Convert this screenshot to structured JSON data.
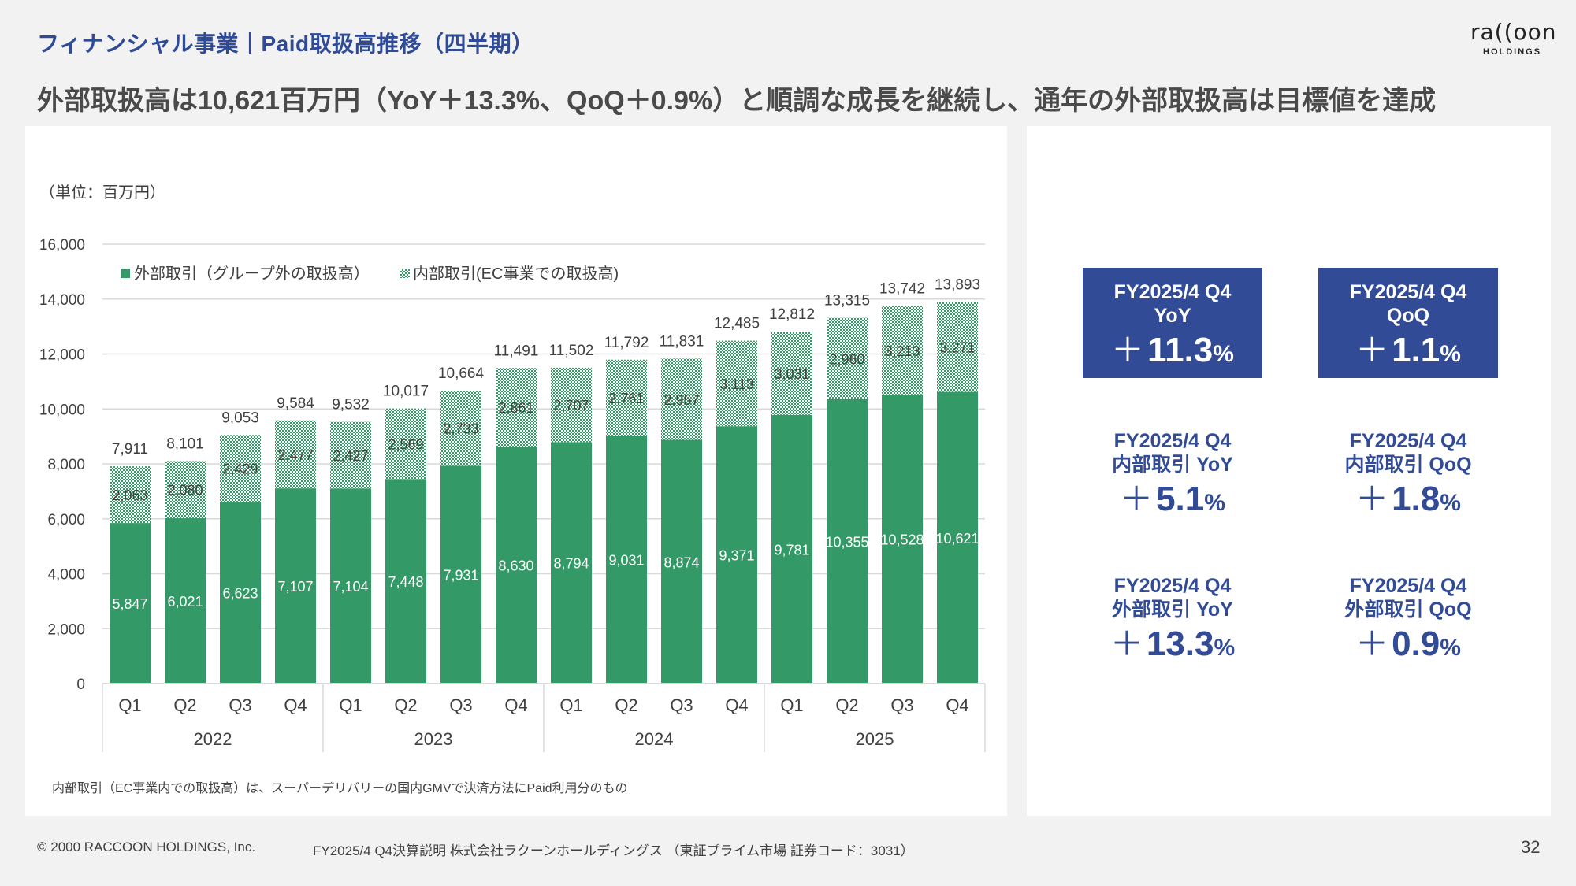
{
  "header": {
    "section_title": "フィナンシャル事業｜Paid取扱高推移（四半期）",
    "headline": "外部取扱高は10,621百万円（YoY＋13.3%、QoQ＋0.9%）と順調な成長を継続し、通年の外部取扱高は目標値を達成",
    "logo_word": "ra((oon",
    "logo_sub": "HOLDINGS"
  },
  "chart_data": {
    "type": "bar",
    "stacked": true,
    "unit_label": "（単位：百万円）",
    "ylim": [
      0,
      16000
    ],
    "yticks": [
      0,
      2000,
      4000,
      6000,
      8000,
      10000,
      12000,
      14000,
      16000
    ],
    "ytick_labels": [
      "0",
      "2,000",
      "4,000",
      "6,000",
      "8,000",
      "10,000",
      "12,000",
      "14,000",
      "16,000"
    ],
    "grid": true,
    "legend_position": "top-left",
    "categories": [
      "Q1",
      "Q2",
      "Q3",
      "Q4",
      "Q1",
      "Q2",
      "Q3",
      "Q4",
      "Q1",
      "Q2",
      "Q3",
      "Q4",
      "Q1",
      "Q2",
      "Q3",
      "Q4"
    ],
    "groups": [
      {
        "label": "2022",
        "count": 4
      },
      {
        "label": "2023",
        "count": 4
      },
      {
        "label": "2024",
        "count": 4
      },
      {
        "label": "2025",
        "count": 4
      }
    ],
    "series": [
      {
        "name": "外部取引（グループ外の取扱高）",
        "color": "#339966",
        "pattern": "solid",
        "values": [
          5847,
          6021,
          6623,
          7107,
          7104,
          7448,
          7931,
          8630,
          8794,
          9031,
          8874,
          9371,
          9781,
          10355,
          10528,
          10621
        ],
        "labels": [
          "5,847",
          "6,021",
          "6,623",
          "7,107",
          "7,104",
          "7,448",
          "7,931",
          "8,630",
          "8,794",
          "9,031",
          "8,874",
          "9,371",
          "9,781",
          "10,355",
          "10,528",
          "10,621"
        ]
      },
      {
        "name": "内部取引(EC事業での取扱高)",
        "color": "#339966",
        "pattern": "checker",
        "values": [
          2063,
          2080,
          2429,
          2477,
          2427,
          2569,
          2733,
          2861,
          2707,
          2761,
          2957,
          3113,
          3031,
          2960,
          3213,
          3271
        ],
        "labels": [
          "2,063",
          "2,080",
          "2,429",
          "2,477",
          "2,427",
          "2,569",
          "2,733",
          "2,861",
          "2,707",
          "2,761",
          "2,957",
          "3,113",
          "3,031",
          "2,960",
          "3,213",
          "3,271"
        ]
      }
    ],
    "totals": [
      7911,
      8101,
      9053,
      9584,
      9532,
      10017,
      10664,
      11491,
      11502,
      11792,
      11831,
      12485,
      12812,
      13315,
      13742,
      13893
    ],
    "total_labels": [
      "7,911",
      "8,101",
      "9,053",
      "9,584",
      "9,532",
      "10,017",
      "10,664",
      "11,491",
      "11,502",
      "11,792",
      "11,831",
      "12,485",
      "12,812",
      "13,315",
      "13,742",
      "13,893"
    ],
    "title": "",
    "xlabel": "",
    "ylabel": ""
  },
  "note": "内部取引（EC事業内での取扱高）は、スーパーデリバリーの国内GMVで決済方法にPaid利用分のもの",
  "kpis": [
    {
      "line1": "FY2025/4 Q4",
      "line2": "YoY",
      "plus": "＋",
      "value": "11.3",
      "pct": "%"
    },
    {
      "line1": "FY2025/4 Q4",
      "line2": "QoQ",
      "plus": "＋",
      "value": "1.1",
      "pct": "%"
    },
    {
      "line1": "FY2025/4 Q4",
      "line2": "内部取引 YoY",
      "plus": "＋",
      "value": "5.1",
      "pct": "%"
    },
    {
      "line1": "FY2025/4 Q4",
      "line2": "内部取引 QoQ",
      "plus": "＋",
      "value": "1.8",
      "pct": "%"
    },
    {
      "line1": "FY2025/4 Q4",
      "line2": "外部取引 YoY",
      "plus": "＋",
      "value": "13.3",
      "pct": "%"
    },
    {
      "line1": "FY2025/4 Q4",
      "line2": "外部取引 QoQ",
      "plus": "＋",
      "value": "0.9",
      "pct": "%"
    }
  ],
  "footer": {
    "copyright": "© 2000 RACCOON HOLDINGS, Inc.",
    "document": "FY2025/4 Q4決算説明 株式会社ラクーンホールディングス （東証プライム市場 証券コード：3031）",
    "page_number": "32"
  }
}
